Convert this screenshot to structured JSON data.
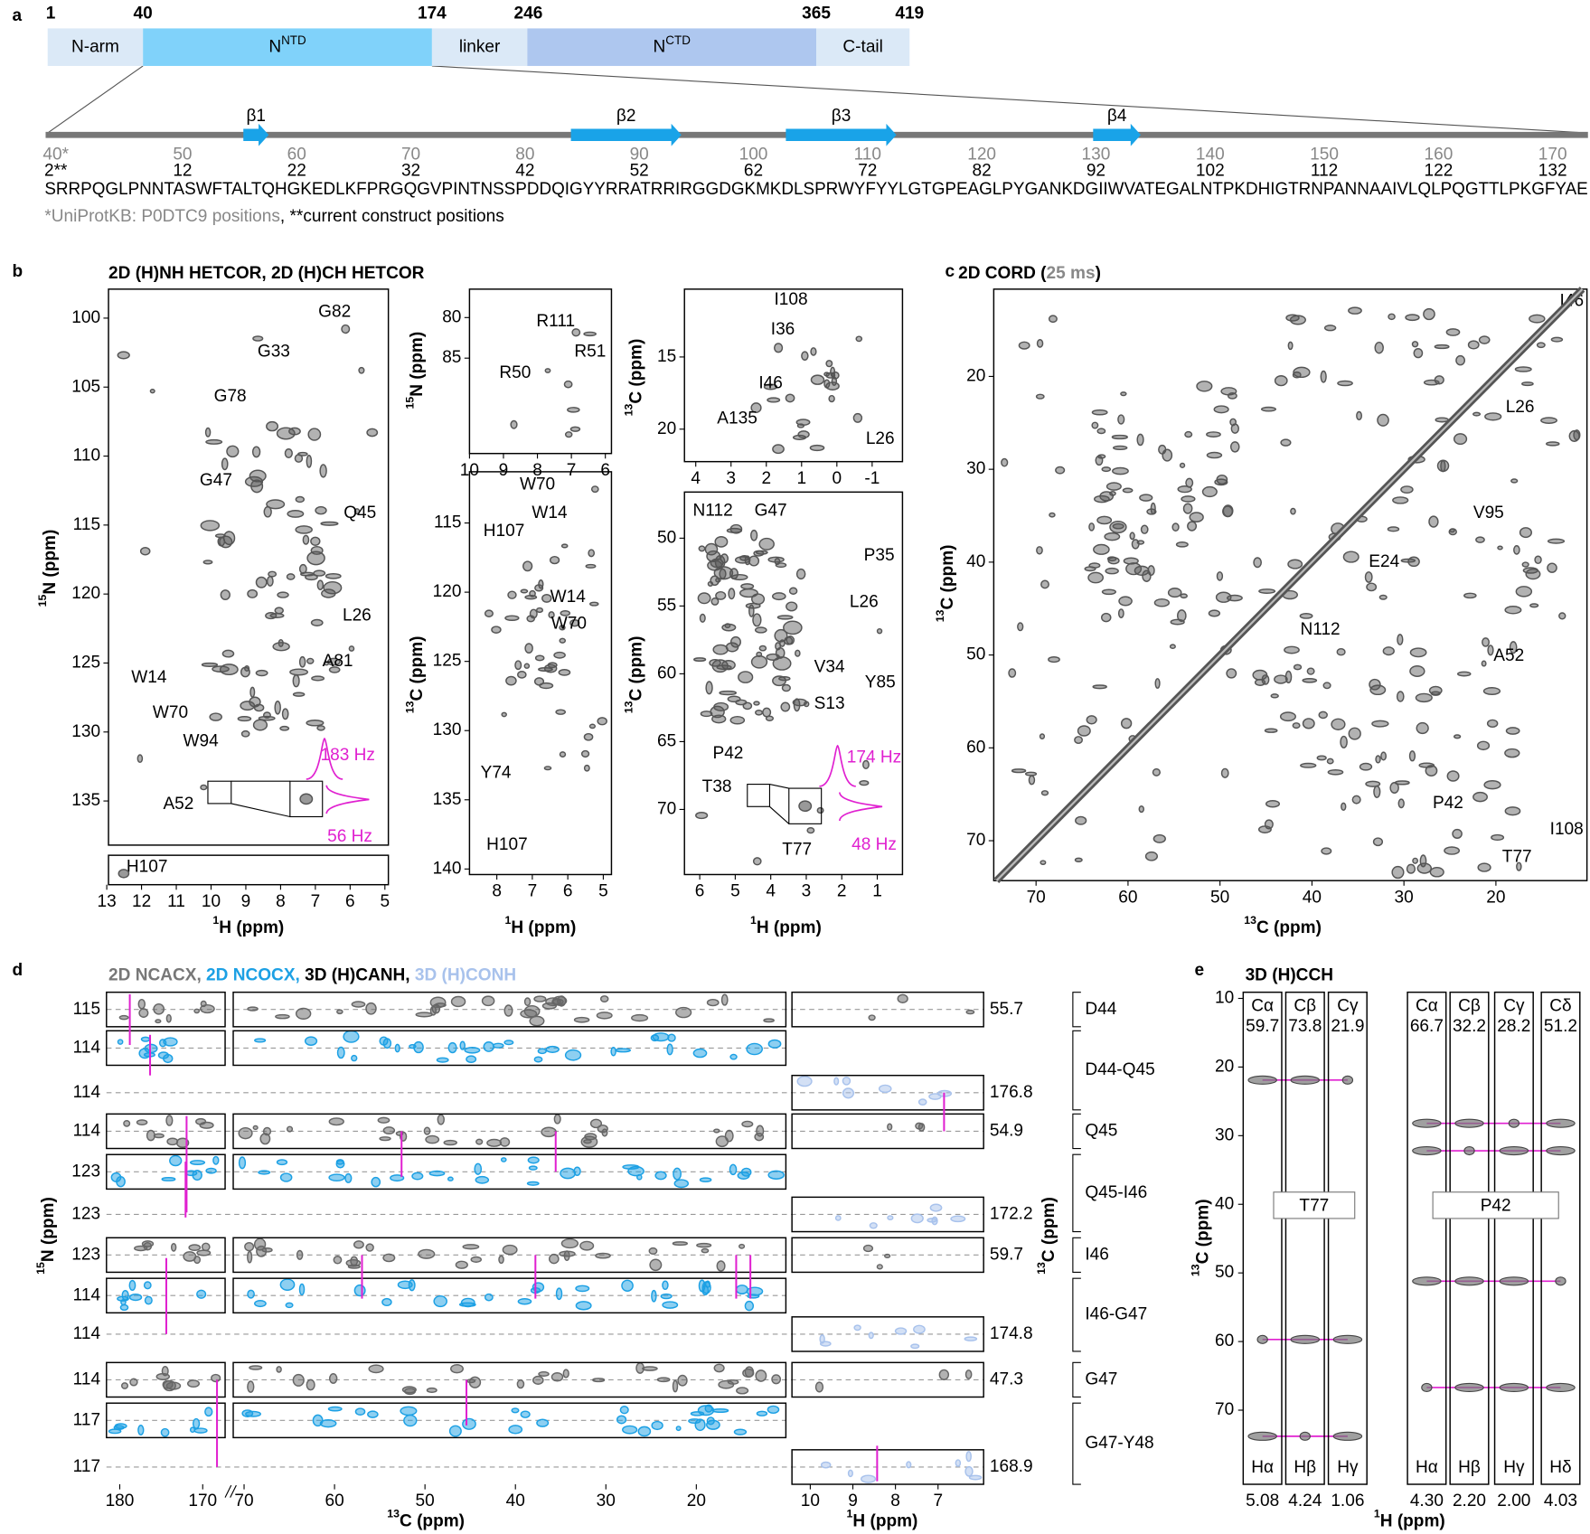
{
  "panel_a": {
    "label": "a",
    "domains": [
      {
        "name": "N-arm"
      },
      {
        "name": "N",
        "sup": "NTD"
      },
      {
        "name": "linker"
      },
      {
        "name": "N",
        "sup": "CTD"
      },
      {
        "name": "C-tail"
      }
    ],
    "boundaries": [
      1,
      40,
      174,
      246,
      365,
      419
    ],
    "strands": [
      "β1",
      "β2",
      "β3",
      "β4"
    ],
    "uniprot_ticks": [
      "40*",
      50,
      60,
      70,
      80,
      90,
      100,
      110,
      120,
      130,
      140,
      150,
      160,
      170
    ],
    "construct_ticks": [
      "2**",
      12,
      22,
      32,
      42,
      52,
      62,
      72,
      82,
      92,
      102,
      112,
      122,
      132
    ],
    "sequence": "SRRPQGLPNNTASWFTALTQHGKEDLKFPRGQGVPINTNSSPDDQIGYYRRATRRIRGGDGKMKDLSPRWYFYYLGTGPEAGLPYGANKDGIIWVATEGALNTPKDHIGTRNPANNAAIVLQLPQGTTLPKGFYAE",
    "footnote": [
      "*UniProtKB: P0DTC9 positions",
      ", **current construct positions"
    ]
  },
  "panel_b": {
    "label": "b",
    "title": "2D (H)NH HETCOR, 2D (H)CH HETCOR",
    "plots": [
      {
        "xlim": [
          12.95,
          4.9
        ],
        "ylim": [
          97.9,
          138.2
        ],
        "xticks": [
          13,
          12,
          11,
          10,
          9,
          8,
          7,
          6,
          5
        ],
        "yticks": [
          100,
          105,
          110,
          115,
          120,
          125,
          130,
          135
        ],
        "ylabel": {
          "sup": "15",
          "text": "N (ppm)"
        },
        "xlabel": {
          "sup": "1",
          "text": "H (ppm)"
        },
        "peaks": [
          "G82",
          "G33",
          "G78",
          "G47",
          "Q45",
          "L26",
          "A81",
          "W14",
          "W70",
          "W94",
          "A52",
          "H107"
        ],
        "linewidths": [
          "183 Hz",
          "56 Hz"
        ]
      },
      {
        "xlim": [
          10.0,
          5.82
        ],
        "ylim": [
          76.5,
          96.75
        ],
        "xticks": [
          10,
          9,
          8,
          7,
          6
        ],
        "yticks": [
          80,
          85
        ],
        "ylabel": {
          "sup": "15",
          "text": "N (ppm)"
        },
        "peaks": [
          "R111",
          "R51",
          "R50"
        ]
      },
      {
        "xlim": [
          8.77,
          4.77
        ],
        "ylim": [
          111.3,
          140.4
        ],
        "xticks": [
          8,
          7,
          6,
          5
        ],
        "yticks": [
          115,
          120,
          125,
          130,
          135,
          140
        ],
        "ylabel": {
          "sup": "13",
          "text": "C (ppm)"
        },
        "xlabel": {
          "sup": "1",
          "text": "H (ppm)"
        },
        "peaks": [
          "W70",
          "W14",
          "H107",
          "W14",
          "W70",
          "Y74",
          "H107"
        ]
      },
      {
        "xlim": [
          4.32,
          -1.86
        ],
        "ylim": [
          10.3,
          22.25
        ],
        "xticks": [
          4,
          3,
          2,
          1,
          0,
          -1
        ],
        "yticks": [
          15,
          20
        ],
        "ylabel": {
          "sup": "13",
          "text": "C (ppm)"
        },
        "peaks": [
          "I108",
          "I36",
          "I46",
          "A135",
          "L26"
        ]
      },
      {
        "xlim": [
          6.43,
          0.29
        ],
        "ylim": [
          46.6,
          74.8
        ],
        "xticks": [
          6,
          5,
          4,
          3,
          2,
          1
        ],
        "yticks": [
          50,
          55,
          60,
          65,
          70
        ],
        "ylabel": {
          "sup": "13",
          "text": "C (ppm)"
        },
        "xlabel": {
          "sup": "1",
          "text": "H (ppm)"
        },
        "peaks": [
          "N112",
          "G47",
          "P35",
          "L26",
          "V34",
          "Y85",
          "S13",
          "P42",
          "T38",
          "T77"
        ],
        "linewidths": [
          "174 Hz",
          "48 Hz"
        ]
      }
    ]
  },
  "panel_c": {
    "label": "c",
    "title": [
      "2D CORD (",
      "25 ms",
      ")"
    ],
    "plots": [
      {
        "xlim": [
          74.6,
          10.1
        ],
        "ylim": [
          10.6,
          74.3
        ],
        "xticks": [
          70,
          60,
          50,
          40,
          30,
          20
        ],
        "yticks": [
          20,
          30,
          40,
          50,
          60,
          70
        ],
        "ylabel": {
          "sup": "13",
          "text": "C (ppm)"
        },
        "xlabel": {
          "sup": "13",
          "text": "C (ppm)"
        },
        "peaks": [
          "I46",
          "L26",
          "V95",
          "E24",
          "N112",
          "A52",
          "P42",
          "I108",
          "T77"
        ]
      }
    ]
  },
  "panel_d": {
    "label": "d",
    "title": [
      "2D NCACX, ",
      "2D NCOCX, ",
      "3D (H)CANH, ",
      "3D (H)CONH"
    ],
    "rows": [
      {
        "n": 115,
        "c": 55.7
      },
      {
        "n": 114
      },
      {
        "n": 114,
        "c": 176.8
      },
      {
        "n": 114,
        "c": 54.9
      },
      {
        "n": 123
      },
      {
        "n": 123,
        "c": 172.2
      },
      {
        "n": 123,
        "c": 59.7
      },
      {
        "n": 114
      },
      {
        "n": 114,
        "c": 174.8
      },
      {
        "n": 114,
        "c": 47.3
      },
      {
        "n": 117
      },
      {
        "n": 117,
        "c": 168.9
      }
    ],
    "residues": [
      "D44",
      "D44-Q45",
      "Q45",
      "Q45-I46",
      "I46",
      "I46-G47",
      "G47",
      "G47-Y48"
    ],
    "panels": [
      {
        "xlim": [
          181.6,
          167.3
        ],
        "xticks": [
          180,
          170
        ]
      },
      {
        "xlim": [
          71.2,
          10.1
        ],
        "xticks": [
          70,
          60,
          50,
          40,
          30,
          20
        ]
      },
      {
        "xlim": [
          10.43,
          5.93
        ],
        "xticks": [
          10,
          9,
          8,
          7
        ]
      }
    ],
    "xlabel_c": {
      "sup": "13",
      "text": "C (ppm)"
    },
    "xlabel_h": {
      "sup": "1",
      "text": "H (ppm)"
    },
    "ylabel": {
      "sup": "15",
      "text": "N (ppm)"
    },
    "y2label": {
      "sup": "13",
      "text": "C (ppm)"
    }
  },
  "panel_e": {
    "label": "e",
    "title": "3D (H)CCH",
    "residues": [
      {
        "name": "T77",
        "columns": [
          {
            "c_label": "Cα",
            "c": 59.7,
            "h_label": "Hα",
            "h": "5.08"
          },
          {
            "c_label": "Cβ",
            "c": 73.8,
            "h_label": "Hβ",
            "h": "4.24"
          },
          {
            "c_label": "Cγ",
            "c": 21.9,
            "h_label": "Hγ",
            "h": "1.06"
          }
        ]
      },
      {
        "name": "P42",
        "columns": [
          {
            "c_label": "Cα",
            "c": 66.7,
            "h_label": "Hα",
            "h": "4.30"
          },
          {
            "c_label": "Cβ",
            "c": 32.2,
            "h_label": "Hβ",
            "h": "2.20"
          },
          {
            "c_label": "Cγ",
            "c": 28.2,
            "h_label": "Hγ",
            "h": "2.00"
          },
          {
            "c_label": "Cδ",
            "c": 51.2,
            "h_label": "Hδ",
            "h": "4.03"
          }
        ]
      }
    ],
    "ylim": [
      9.1,
      80.8
    ],
    "yticks": [
      10,
      20,
      30,
      40,
      50,
      60,
      70
    ],
    "xlabel": {
      "sup": "1",
      "text": "H (ppm)"
    },
    "ylabel": {
      "sup": "13",
      "text": "C (ppm)"
    }
  }
}
